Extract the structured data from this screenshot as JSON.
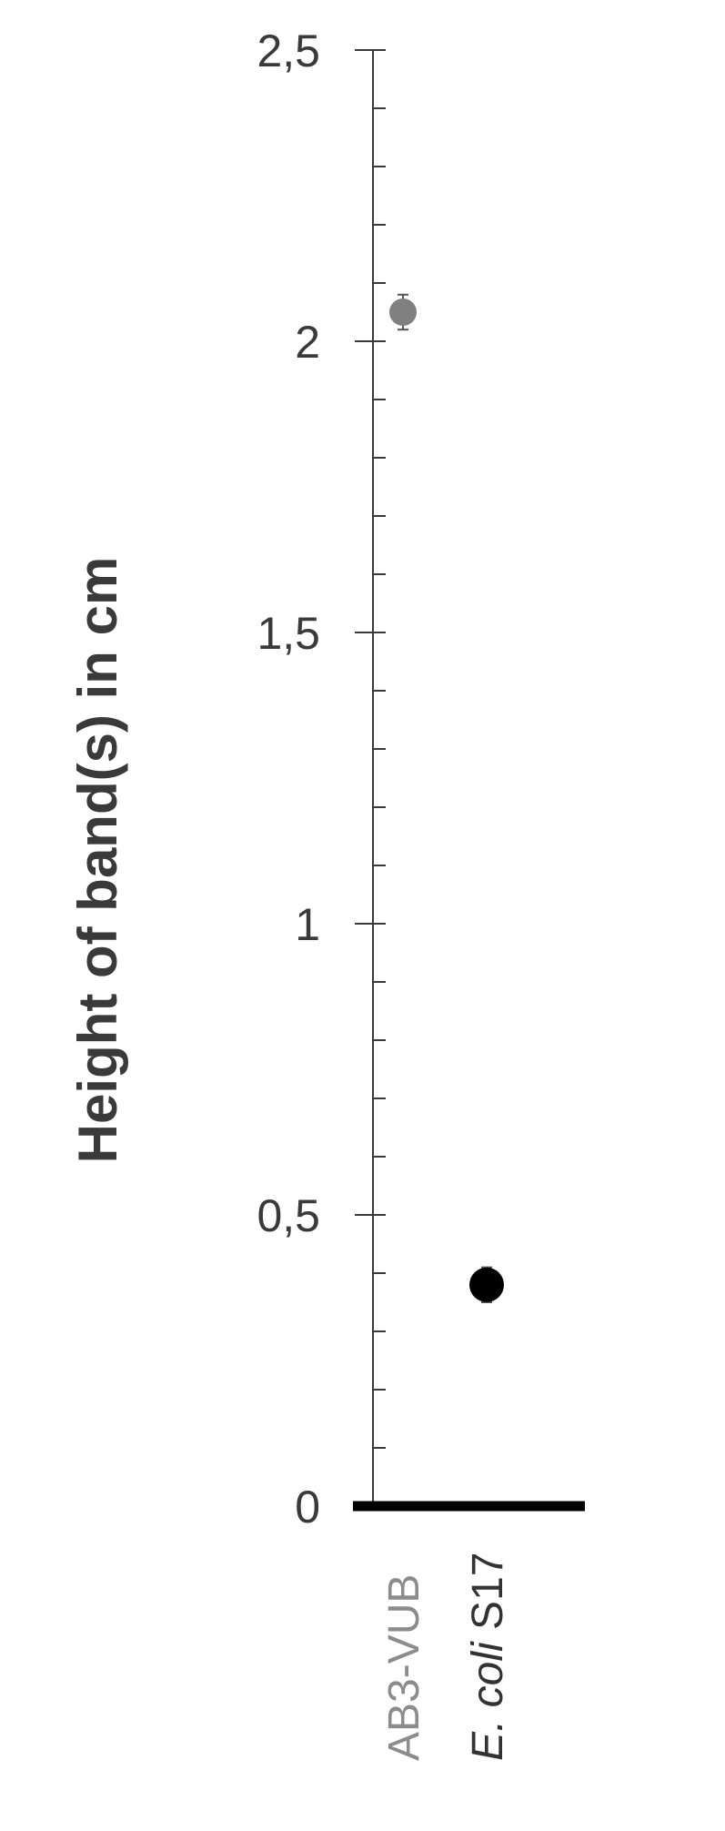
{
  "chart_data": {
    "type": "scatter",
    "title": "",
    "ylabel": "Height of band(s) in cm",
    "xlabel": "",
    "ylim": [
      0,
      2.5
    ],
    "y_major_ticks": [
      "0",
      "0,5",
      "1",
      "1,5",
      "2",
      "2,5"
    ],
    "y_major_values": [
      0,
      0.5,
      1,
      1.5,
      2,
      2.5
    ],
    "y_minor_step": 0.1,
    "grid": false,
    "categories": [
      {
        "prefix": "AB3-VUB",
        "italic": "",
        "suffix": ""
      },
      {
        "prefix": "",
        "italic": "E. coli",
        "suffix": " S17"
      }
    ],
    "points": [
      {
        "category": "AB3-VUB",
        "y": 2.05,
        "error": 0.03,
        "color": "#808080"
      },
      {
        "category": "E. coli S17",
        "y": 0.38,
        "error": 0.03,
        "color": "#000000"
      }
    ],
    "colors": {
      "text": "#3a3a3a",
      "axis": "#3a3a3a",
      "baseline": "#000000",
      "ab3_label": "#8c8c8c",
      "ecoli_label": "#333333"
    }
  }
}
